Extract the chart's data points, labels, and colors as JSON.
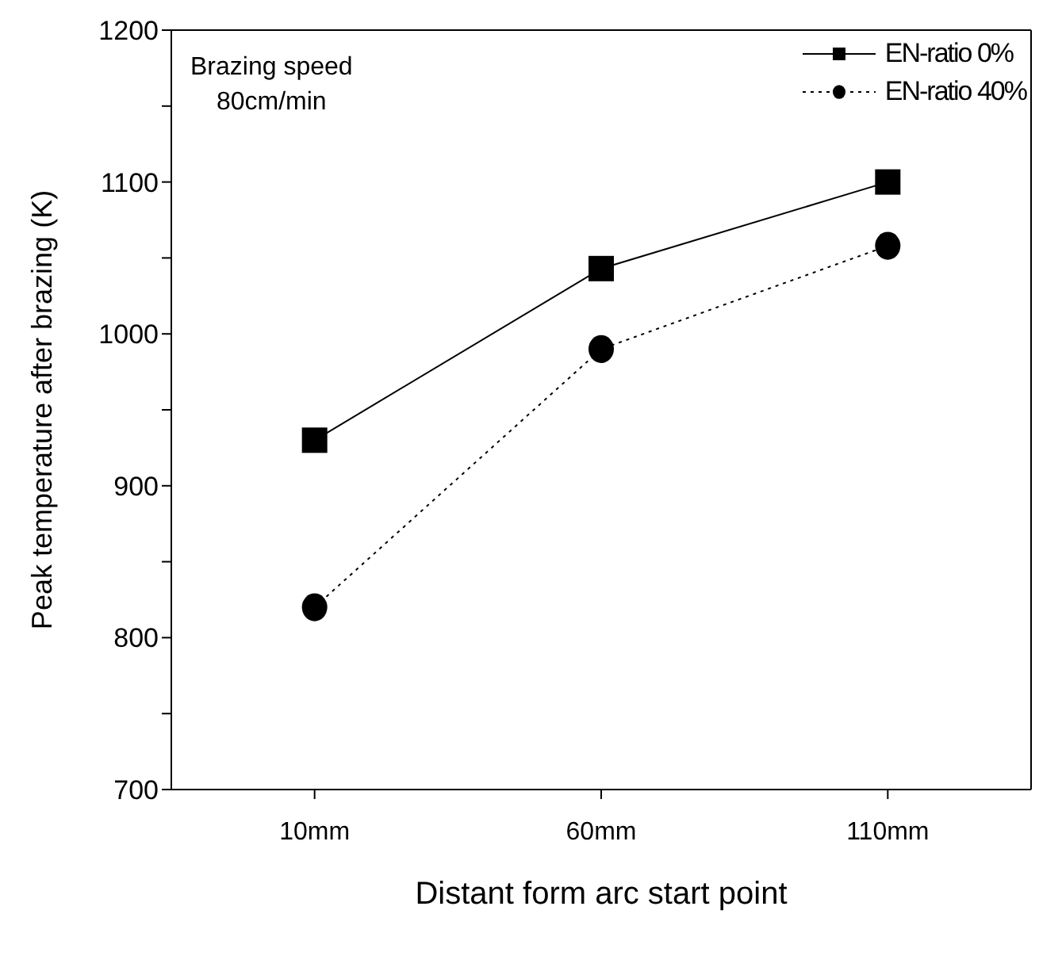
{
  "chart_data": {
    "type": "line",
    "xlabel": "Distant form arc start point",
    "ylabel": "Peak temperature after brazing (K)",
    "x": [
      10,
      60,
      110
    ],
    "xlim": [
      -15,
      135
    ],
    "xticks": [
      {
        "value": 10,
        "label": "10mm"
      },
      {
        "value": 60,
        "label": "60mm"
      },
      {
        "value": 110,
        "label": "110mm"
      }
    ],
    "ylim": [
      700,
      1200
    ],
    "yticks": [
      700,
      {
        "value": 750,
        "label": null
      },
      800,
      {
        "value": 850,
        "label": null
      },
      900,
      {
        "value": 950,
        "label": null
      },
      1000,
      {
        "value": 1050,
        "label": null
      },
      1100,
      {
        "value": 1150,
        "label": null
      },
      1200
    ],
    "series": [
      {
        "name": "EN-ratio 0%",
        "color": "#000000",
        "values": [
          930,
          1043,
          1100
        ],
        "marker": "square",
        "line_style": "solid"
      },
      {
        "name": "EN-ratio 40%",
        "color": "#000000",
        "values": [
          820,
          990,
          1058
        ],
        "marker": "circle",
        "line_style": "dotted"
      }
    ],
    "legend": "top right",
    "grid": false,
    "annotations": [
      "Brazing speed",
      "80cm/min"
    ]
  }
}
